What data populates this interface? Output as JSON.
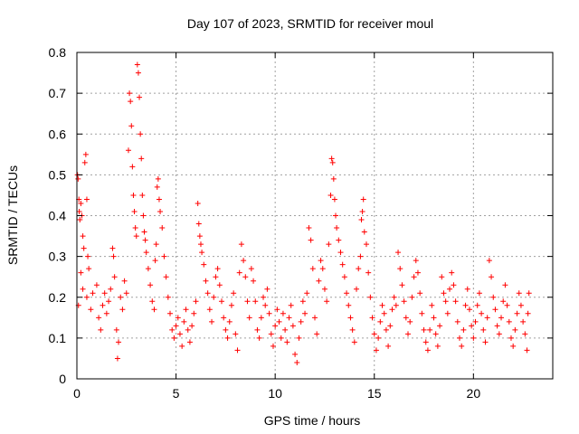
{
  "chart_data": {
    "type": "scatter",
    "title": "Day 107 of 2023, SRMTID for receiver moul",
    "xlabel": "GPS time / hours",
    "ylabel": "SRMTID / TECUs",
    "xlim": [
      0,
      24
    ],
    "ylim": [
      0,
      0.8
    ],
    "x_ticks": [
      0,
      5,
      10,
      15,
      20
    ],
    "x_tick_labels": [
      "0",
      "5",
      "10",
      "15",
      "20"
    ],
    "y_ticks": [
      0,
      0.1,
      0.2,
      0.3,
      0.4,
      0.5,
      0.6,
      0.7,
      0.8
    ],
    "y_tick_labels": [
      "0",
      "0.1",
      "0.2",
      "0.3",
      "0.4",
      "0.5",
      "0.6",
      "0.7",
      "0.8"
    ],
    "grid": true,
    "marker": "+",
    "color": "#ff0000",
    "series": [
      {
        "name": "SRMTID",
        "points": [
          [
            0.03,
            0.5
          ],
          [
            0.06,
            0.49
          ],
          [
            0.1,
            0.44
          ],
          [
            0.12,
            0.41
          ],
          [
            0.15,
            0.39
          ],
          [
            0.2,
            0.43
          ],
          [
            0.25,
            0.4
          ],
          [
            0.3,
            0.35
          ],
          [
            0.35,
            0.32
          ],
          [
            0.4,
            0.53
          ],
          [
            0.45,
            0.55
          ],
          [
            0.5,
            0.44
          ],
          [
            0.55,
            0.3
          ],
          [
            0.6,
            0.27
          ],
          [
            0.08,
            0.18
          ],
          [
            0.2,
            0.26
          ],
          [
            0.3,
            0.22
          ],
          [
            0.5,
            0.2
          ],
          [
            0.7,
            0.17
          ],
          [
            0.8,
            0.21
          ],
          [
            1.0,
            0.23
          ],
          [
            1.1,
            0.15
          ],
          [
            1.2,
            0.12
          ],
          [
            1.3,
            0.18
          ],
          [
            1.4,
            0.21
          ],
          [
            1.5,
            0.16
          ],
          [
            1.6,
            0.19
          ],
          [
            1.7,
            0.22
          ],
          [
            1.8,
            0.32
          ],
          [
            1.85,
            0.3
          ],
          [
            1.9,
            0.25
          ],
          [
            2.0,
            0.12
          ],
          [
            2.05,
            0.05
          ],
          [
            2.1,
            0.09
          ],
          [
            2.2,
            0.2
          ],
          [
            2.3,
            0.17
          ],
          [
            2.4,
            0.24
          ],
          [
            2.5,
            0.21
          ],
          [
            2.6,
            0.56
          ],
          [
            2.65,
            0.7
          ],
          [
            2.7,
            0.68
          ],
          [
            2.75,
            0.62
          ],
          [
            2.8,
            0.52
          ],
          [
            2.85,
            0.45
          ],
          [
            2.9,
            0.41
          ],
          [
            2.95,
            0.37
          ],
          [
            3.0,
            0.35
          ],
          [
            3.05,
            0.77
          ],
          [
            3.1,
            0.75
          ],
          [
            3.15,
            0.69
          ],
          [
            3.2,
            0.6
          ],
          [
            3.25,
            0.54
          ],
          [
            3.3,
            0.45
          ],
          [
            3.35,
            0.4
          ],
          [
            3.4,
            0.36
          ],
          [
            3.45,
            0.34
          ],
          [
            3.5,
            0.31
          ],
          [
            3.6,
            0.27
          ],
          [
            3.7,
            0.23
          ],
          [
            3.8,
            0.19
          ],
          [
            3.9,
            0.17
          ],
          [
            3.95,
            0.29
          ],
          [
            4.0,
            0.33
          ],
          [
            4.05,
            0.47
          ],
          [
            4.1,
            0.49
          ],
          [
            4.15,
            0.44
          ],
          [
            4.2,
            0.41
          ],
          [
            4.3,
            0.37
          ],
          [
            4.4,
            0.3
          ],
          [
            4.5,
            0.25
          ],
          [
            4.6,
            0.2
          ],
          [
            4.7,
            0.16
          ],
          [
            4.8,
            0.12
          ],
          [
            4.9,
            0.1
          ],
          [
            5.0,
            0.13
          ],
          [
            5.1,
            0.15
          ],
          [
            5.2,
            0.11
          ],
          [
            5.3,
            0.08
          ],
          [
            5.4,
            0.14
          ],
          [
            5.5,
            0.17
          ],
          [
            5.6,
            0.12
          ],
          [
            5.7,
            0.09
          ],
          [
            5.8,
            0.13
          ],
          [
            5.9,
            0.16
          ],
          [
            6.0,
            0.19
          ],
          [
            6.1,
            0.43
          ],
          [
            6.15,
            0.38
          ],
          [
            6.2,
            0.35
          ],
          [
            6.25,
            0.33
          ],
          [
            6.3,
            0.31
          ],
          [
            6.4,
            0.28
          ],
          [
            6.5,
            0.24
          ],
          [
            6.6,
            0.21
          ],
          [
            6.7,
            0.17
          ],
          [
            6.8,
            0.14
          ],
          [
            6.9,
            0.2
          ],
          [
            7.0,
            0.25
          ],
          [
            7.1,
            0.27
          ],
          [
            7.2,
            0.23
          ],
          [
            7.3,
            0.19
          ],
          [
            7.4,
            0.15
          ],
          [
            7.5,
            0.12
          ],
          [
            7.6,
            0.1
          ],
          [
            7.7,
            0.14
          ],
          [
            7.8,
            0.18
          ],
          [
            7.9,
            0.21
          ],
          [
            8.0,
            0.11
          ],
          [
            8.1,
            0.07
          ],
          [
            8.2,
            0.26
          ],
          [
            8.3,
            0.33
          ],
          [
            8.4,
            0.29
          ],
          [
            8.5,
            0.25
          ],
          [
            8.6,
            0.19
          ],
          [
            8.7,
            0.15
          ],
          [
            8.8,
            0.27
          ],
          [
            8.9,
            0.24
          ],
          [
            9.0,
            0.19
          ],
          [
            9.1,
            0.12
          ],
          [
            9.2,
            0.1
          ],
          [
            9.3,
            0.15
          ],
          [
            9.4,
            0.2
          ],
          [
            9.5,
            0.18
          ],
          [
            9.6,
            0.22
          ],
          [
            9.7,
            0.16
          ],
          [
            9.8,
            0.11
          ],
          [
            9.9,
            0.08
          ],
          [
            10.0,
            0.13
          ],
          [
            10.1,
            0.17
          ],
          [
            10.2,
            0.14
          ],
          [
            10.3,
            0.1
          ],
          [
            10.4,
            0.16
          ],
          [
            10.5,
            0.12
          ],
          [
            10.6,
            0.09
          ],
          [
            10.7,
            0.15
          ],
          [
            10.8,
            0.18
          ],
          [
            10.9,
            0.13
          ],
          [
            11.0,
            0.06
          ],
          [
            11.1,
            0.04
          ],
          [
            11.2,
            0.1
          ],
          [
            11.3,
            0.14
          ],
          [
            11.4,
            0.19
          ],
          [
            11.5,
            0.16
          ],
          [
            11.6,
            0.21
          ],
          [
            11.7,
            0.37
          ],
          [
            11.8,
            0.34
          ],
          [
            11.9,
            0.27
          ],
          [
            12.0,
            0.15
          ],
          [
            12.1,
            0.11
          ],
          [
            12.2,
            0.24
          ],
          [
            12.3,
            0.29
          ],
          [
            12.4,
            0.27
          ],
          [
            12.5,
            0.22
          ],
          [
            12.6,
            0.19
          ],
          [
            12.7,
            0.33
          ],
          [
            12.8,
            0.45
          ],
          [
            12.85,
            0.54
          ],
          [
            12.9,
            0.53
          ],
          [
            12.95,
            0.49
          ],
          [
            13.0,
            0.44
          ],
          [
            13.05,
            0.4
          ],
          [
            13.1,
            0.37
          ],
          [
            13.2,
            0.34
          ],
          [
            13.3,
            0.31
          ],
          [
            13.4,
            0.28
          ],
          [
            13.5,
            0.25
          ],
          [
            13.6,
            0.21
          ],
          [
            13.7,
            0.18
          ],
          [
            13.8,
            0.15
          ],
          [
            13.9,
            0.12
          ],
          [
            14.0,
            0.09
          ],
          [
            14.1,
            0.22
          ],
          [
            14.2,
            0.27
          ],
          [
            14.3,
            0.3
          ],
          [
            14.35,
            0.39
          ],
          [
            14.4,
            0.41
          ],
          [
            14.45,
            0.44
          ],
          [
            14.5,
            0.36
          ],
          [
            14.6,
            0.33
          ],
          [
            14.7,
            0.26
          ],
          [
            14.8,
            0.2
          ],
          [
            14.9,
            0.15
          ],
          [
            15.0,
            0.11
          ],
          [
            15.1,
            0.07
          ],
          [
            15.2,
            0.1
          ],
          [
            15.3,
            0.14
          ],
          [
            15.4,
            0.18
          ],
          [
            15.5,
            0.16
          ],
          [
            15.6,
            0.12
          ],
          [
            15.7,
            0.08
          ],
          [
            15.8,
            0.13
          ],
          [
            15.9,
            0.17
          ],
          [
            16.0,
            0.2
          ],
          [
            16.1,
            0.18
          ],
          [
            16.2,
            0.31
          ],
          [
            16.3,
            0.27
          ],
          [
            16.4,
            0.23
          ],
          [
            16.5,
            0.19
          ],
          [
            16.6,
            0.15
          ],
          [
            16.7,
            0.11
          ],
          [
            16.8,
            0.14
          ],
          [
            16.9,
            0.2
          ],
          [
            17.0,
            0.25
          ],
          [
            17.1,
            0.29
          ],
          [
            17.2,
            0.26
          ],
          [
            17.3,
            0.21
          ],
          [
            17.4,
            0.16
          ],
          [
            17.5,
            0.12
          ],
          [
            17.6,
            0.09
          ],
          [
            17.7,
            0.07
          ],
          [
            17.8,
            0.12
          ],
          [
            17.9,
            0.18
          ],
          [
            18.0,
            0.15
          ],
          [
            18.1,
            0.11
          ],
          [
            18.2,
            0.08
          ],
          [
            18.3,
            0.13
          ],
          [
            18.4,
            0.25
          ],
          [
            18.5,
            0.21
          ],
          [
            18.6,
            0.19
          ],
          [
            18.7,
            0.16
          ],
          [
            18.8,
            0.22
          ],
          [
            18.9,
            0.26
          ],
          [
            19.0,
            0.23
          ],
          [
            19.1,
            0.19
          ],
          [
            19.2,
            0.14
          ],
          [
            19.3,
            0.1
          ],
          [
            19.4,
            0.08
          ],
          [
            19.5,
            0.12
          ],
          [
            19.6,
            0.18
          ],
          [
            19.7,
            0.22
          ],
          [
            19.8,
            0.17
          ],
          [
            19.9,
            0.13
          ],
          [
            20.0,
            0.1
          ],
          [
            20.1,
            0.14
          ],
          [
            20.2,
            0.18
          ],
          [
            20.3,
            0.21
          ],
          [
            20.4,
            0.16
          ],
          [
            20.5,
            0.12
          ],
          [
            20.6,
            0.09
          ],
          [
            20.7,
            0.15
          ],
          [
            20.8,
            0.29
          ],
          [
            20.9,
            0.25
          ],
          [
            21.0,
            0.2
          ],
          [
            21.1,
            0.17
          ],
          [
            21.2,
            0.13
          ],
          [
            21.3,
            0.11
          ],
          [
            21.4,
            0.15
          ],
          [
            21.5,
            0.19
          ],
          [
            21.6,
            0.23
          ],
          [
            21.7,
            0.18
          ],
          [
            21.8,
            0.14
          ],
          [
            21.9,
            0.1
          ],
          [
            22.0,
            0.08
          ],
          [
            22.1,
            0.12
          ],
          [
            22.2,
            0.16
          ],
          [
            22.3,
            0.21
          ],
          [
            22.4,
            0.18
          ],
          [
            22.5,
            0.14
          ],
          [
            22.6,
            0.11
          ],
          [
            22.7,
            0.07
          ],
          [
            22.75,
            0.16
          ],
          [
            22.8,
            0.21
          ]
        ]
      }
    ]
  }
}
